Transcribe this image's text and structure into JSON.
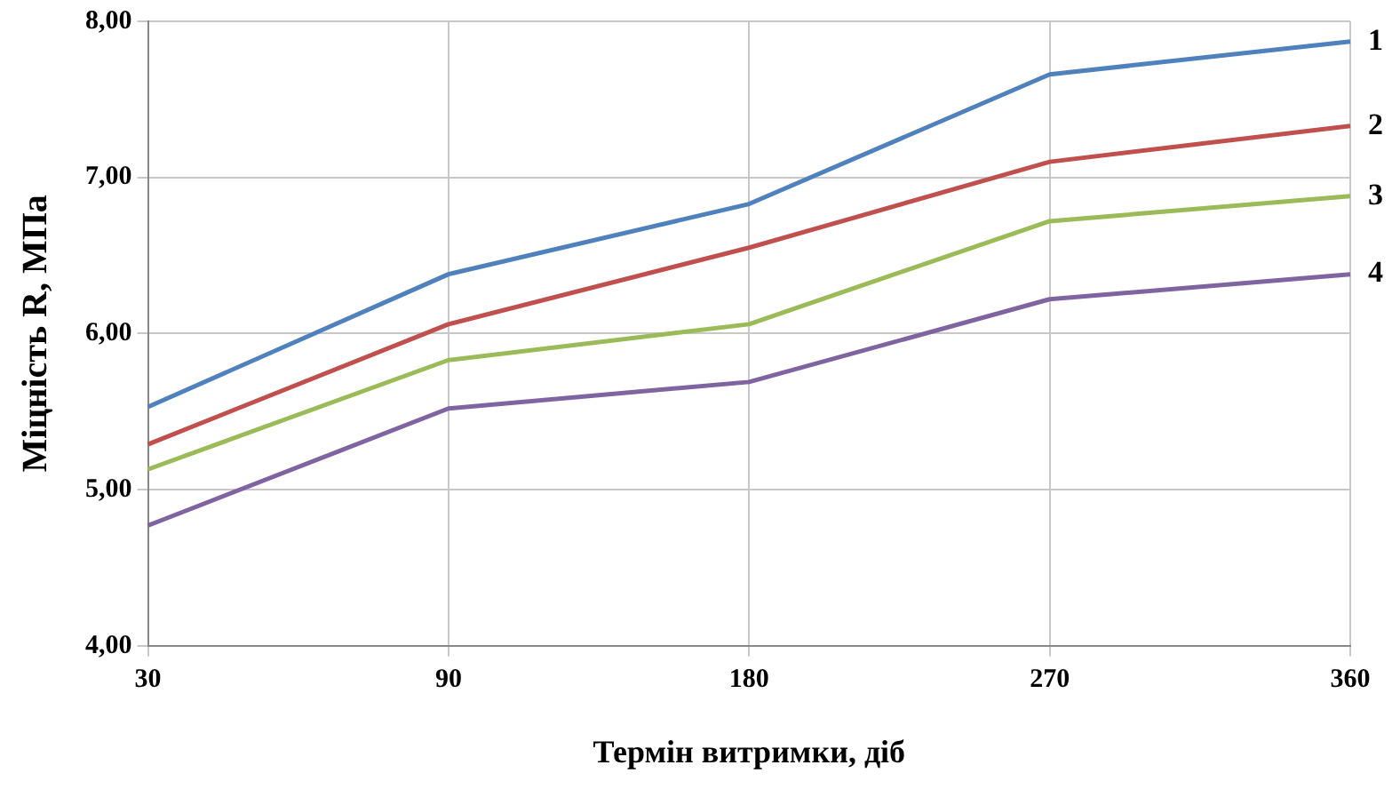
{
  "chart_data": {
    "type": "line",
    "xlabel": "Термін витримки, діб",
    "ylabel": "Міцність R, МПа",
    "categories": [
      "30",
      "90",
      "180",
      "270",
      "360"
    ],
    "series": [
      {
        "name": "1",
        "color": "#4f81bd",
        "values": [
          5.53,
          6.38,
          6.83,
          7.66,
          7.87
        ]
      },
      {
        "name": "2",
        "color": "#c0504d",
        "values": [
          5.29,
          6.06,
          6.55,
          7.1,
          7.33
        ]
      },
      {
        "name": "3",
        "color": "#9bbb59",
        "values": [
          5.13,
          5.83,
          6.06,
          6.72,
          6.88
        ]
      },
      {
        "name": "4",
        "color": "#8064a2",
        "values": [
          4.77,
          5.52,
          5.69,
          6.22,
          6.38
        ]
      }
    ],
    "ylim": [
      4,
      8
    ],
    "yticks": [
      {
        "value": 4,
        "label": "4,00"
      },
      {
        "value": 5,
        "label": "5,00"
      },
      {
        "value": 6,
        "label": "6,00"
      },
      {
        "value": 7,
        "label": "7,00"
      },
      {
        "value": 8,
        "label": "8,00"
      }
    ],
    "grid": true,
    "legend": false,
    "marker": "none",
    "line_style": "solid"
  }
}
